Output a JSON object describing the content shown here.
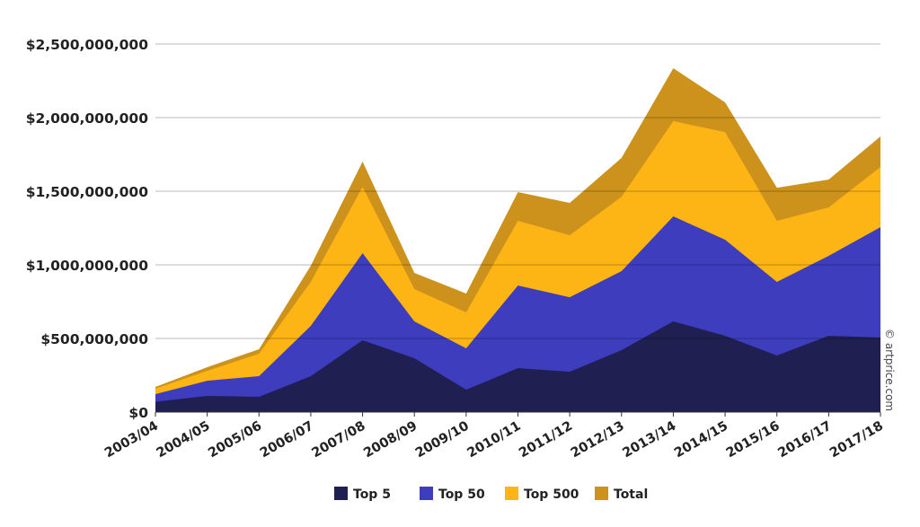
{
  "chart_data": {
    "type": "area",
    "title": "",
    "xlabel": "",
    "ylabel": "",
    "ylim": [
      0,
      2500000000
    ],
    "yticks": [
      0,
      500000000,
      1000000000,
      1500000000,
      2000000000,
      2500000000
    ],
    "ytick_labels": [
      "$0",
      "$500,000,000",
      "$1,000,000,000",
      "$1,500,000,000",
      "$2,000,000,000",
      "$2,500,000,000"
    ],
    "grid": true,
    "legend_position": "bottom",
    "categories": [
      "2003/04",
      "2004/05",
      "2005/06",
      "2006/07",
      "2007/08",
      "2008/09",
      "2009/10",
      "2010/11",
      "2011/12",
      "2012/13",
      "2013/14",
      "2014/15",
      "2015/16",
      "2016/17",
      "2017/18"
    ],
    "series": [
      {
        "name": "Total",
        "color": "#cc921b",
        "values": [
          171000000,
          305000000,
          427000000,
          994000000,
          1701000000,
          945000000,
          805000000,
          1494000000,
          1421000000,
          1726000000,
          2335000000,
          2104000000,
          1524000000,
          1579000000,
          1872000000
        ]
      },
      {
        "name": "Top 500",
        "color": "#fdb515",
        "values": [
          159000000,
          280000000,
          396000000,
          884000000,
          1530000000,
          835000000,
          677000000,
          1299000000,
          1201000000,
          1463000000,
          1976000000,
          1902000000,
          1299000000,
          1390000000,
          1665000000
        ]
      },
      {
        "name": "Top 50",
        "color": "#3d3dbd",
        "values": [
          122000000,
          213000000,
          244000000,
          585000000,
          1079000000,
          616000000,
          433000000,
          860000000,
          780000000,
          957000000,
          1329000000,
          1171000000,
          884000000,
          1061000000,
          1256000000
        ]
      },
      {
        "name": "Top 5",
        "color": "#1f1f52",
        "values": [
          70000000,
          110000000,
          104000000,
          244000000,
          488000000,
          366000000,
          152000000,
          299000000,
          274000000,
          421000000,
          616000000,
          518000000,
          384000000,
          518000000,
          506000000
        ]
      }
    ],
    "legend_order": [
      "Top 5",
      "Top 50",
      "Top 500",
      "Total"
    ],
    "credit": "© artprice.com"
  }
}
